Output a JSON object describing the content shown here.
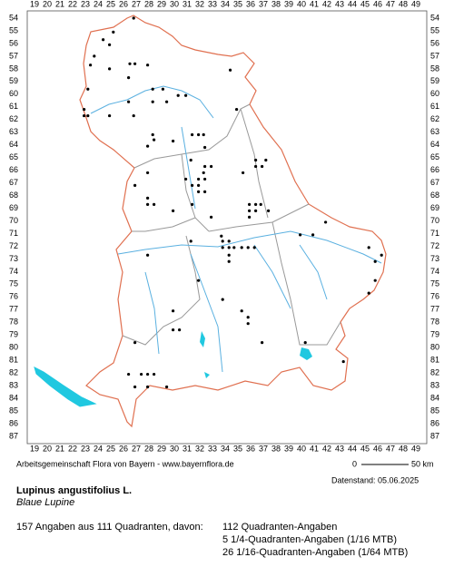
{
  "map": {
    "columns": [
      19,
      20,
      21,
      22,
      23,
      24,
      25,
      26,
      27,
      28,
      29,
      30,
      31,
      32,
      33,
      34,
      35,
      36,
      37,
      38,
      39,
      40,
      41,
      42,
      43,
      44,
      45,
      46,
      47,
      48,
      49
    ],
    "rows": [
      54,
      55,
      56,
      57,
      58,
      59,
      60,
      61,
      62,
      63,
      64,
      65,
      66,
      67,
      68,
      69,
      70,
      71,
      72,
      73,
      74,
      75,
      76,
      77,
      78,
      79,
      80,
      81,
      82,
      83,
      84,
      85,
      86,
      87
    ],
    "points": [
      [
        26.8,
        54.0
      ],
      [
        25.2,
        55.1
      ],
      [
        24.4,
        55.7
      ],
      [
        24.9,
        56.1
      ],
      [
        23.7,
        57.0
      ],
      [
        23.4,
        57.7
      ],
      [
        26.5,
        57.6
      ],
      [
        26.9,
        57.6
      ],
      [
        27.9,
        57.7
      ],
      [
        24.9,
        58.0
      ],
      [
        34.4,
        58.1
      ],
      [
        26.4,
        58.7
      ],
      [
        23.2,
        59.6
      ],
      [
        28.3,
        59.6
      ],
      [
        29.1,
        59.6
      ],
      [
        30.3,
        60.1
      ],
      [
        30.9,
        60.1
      ],
      [
        26.4,
        60.6
      ],
      [
        28.3,
        60.6
      ],
      [
        29.4,
        60.6
      ],
      [
        34.9,
        61.2
      ],
      [
        22.9,
        61.2
      ],
      [
        22.9,
        61.7
      ],
      [
        23.2,
        61.7
      ],
      [
        24.9,
        61.7
      ],
      [
        26.8,
        61.7
      ],
      [
        28.3,
        63.2
      ],
      [
        31.4,
        63.2
      ],
      [
        31.9,
        63.2
      ],
      [
        32.3,
        63.2
      ],
      [
        28.4,
        63.6
      ],
      [
        27.9,
        64.1
      ],
      [
        29.9,
        63.7
      ],
      [
        32.4,
        64.2
      ],
      [
        31.3,
        65.2
      ],
      [
        32.4,
        65.7
      ],
      [
        32.9,
        65.7
      ],
      [
        32.3,
        66.2
      ],
      [
        27.9,
        66.2
      ],
      [
        30.9,
        66.7
      ],
      [
        31.9,
        66.7
      ],
      [
        32.4,
        66.7
      ],
      [
        26.9,
        67.2
      ],
      [
        31.4,
        67.2
      ],
      [
        31.9,
        67.2
      ],
      [
        31.9,
        67.7
      ],
      [
        32.4,
        67.7
      ],
      [
        27.9,
        68.2
      ],
      [
        27.9,
        68.7
      ],
      [
        28.4,
        68.7
      ],
      [
        31.4,
        68.7
      ],
      [
        29.9,
        69.2
      ],
      [
        32.9,
        69.7
      ],
      [
        36.4,
        65.7
      ],
      [
        36.9,
        65.7
      ],
      [
        36.4,
        65.2
      ],
      [
        37.2,
        65.2
      ],
      [
        35.4,
        66.2
      ],
      [
        35.9,
        68.7
      ],
      [
        36.4,
        68.7
      ],
      [
        36.8,
        68.7
      ],
      [
        35.9,
        69.2
      ],
      [
        36.4,
        69.2
      ],
      [
        37.4,
        69.2
      ],
      [
        35.9,
        69.7
      ],
      [
        41.9,
        70.1
      ],
      [
        39.9,
        71.1
      ],
      [
        40.9,
        71.1
      ],
      [
        33.7,
        71.2
      ],
      [
        33.8,
        71.6
      ],
      [
        34.3,
        71.6
      ],
      [
        33.8,
        72.1
      ],
      [
        34.3,
        72.1
      ],
      [
        34.7,
        72.1
      ],
      [
        35.3,
        72.1
      ],
      [
        35.8,
        72.1
      ],
      [
        36.3,
        72.1
      ],
      [
        31.3,
        71.6
      ],
      [
        34.3,
        72.7
      ],
      [
        34.3,
        73.2
      ],
      [
        27.9,
        72.7
      ],
      [
        45.3,
        72.1
      ],
      [
        46.3,
        72.7
      ],
      [
        45.8,
        73.2
      ],
      [
        45.8,
        74.7
      ],
      [
        45.3,
        75.7
      ],
      [
        31.9,
        74.7
      ],
      [
        33.8,
        76.2
      ],
      [
        29.9,
        77.1
      ],
      [
        35.3,
        77.1
      ],
      [
        35.8,
        77.6
      ],
      [
        35.8,
        78.1
      ],
      [
        29.9,
        78.6
      ],
      [
        30.4,
        78.6
      ],
      [
        26.9,
        79.6
      ],
      [
        36.9,
        79.6
      ],
      [
        40.3,
        79.6
      ],
      [
        43.3,
        81.1
      ],
      [
        26.4,
        82.1
      ],
      [
        27.4,
        82.1
      ],
      [
        27.9,
        82.1
      ],
      [
        28.4,
        82.1
      ],
      [
        27.9,
        83.1
      ],
      [
        29.4,
        83.1
      ],
      [
        26.9,
        83.1
      ]
    ]
  },
  "credit": "Arbeitsgemeinschaft Flora von Bayern - www.bayernflora.de",
  "scale": {
    "start": "0",
    "end": "50 km"
  },
  "date": "Datenstand: 05.06.2025",
  "title": "Lupinus angustifolius L.",
  "subtitle": "Blaue Lupine",
  "summary": "157 Angaben aus 111 Quadranten, davon:",
  "details": [
    "112 Quadranten-Angaben",
    "5 1/4-Quadranten-Angaben (1/16 MTB)",
    "26 1/16-Quadranten-Angaben (1/64 MTB)"
  ]
}
